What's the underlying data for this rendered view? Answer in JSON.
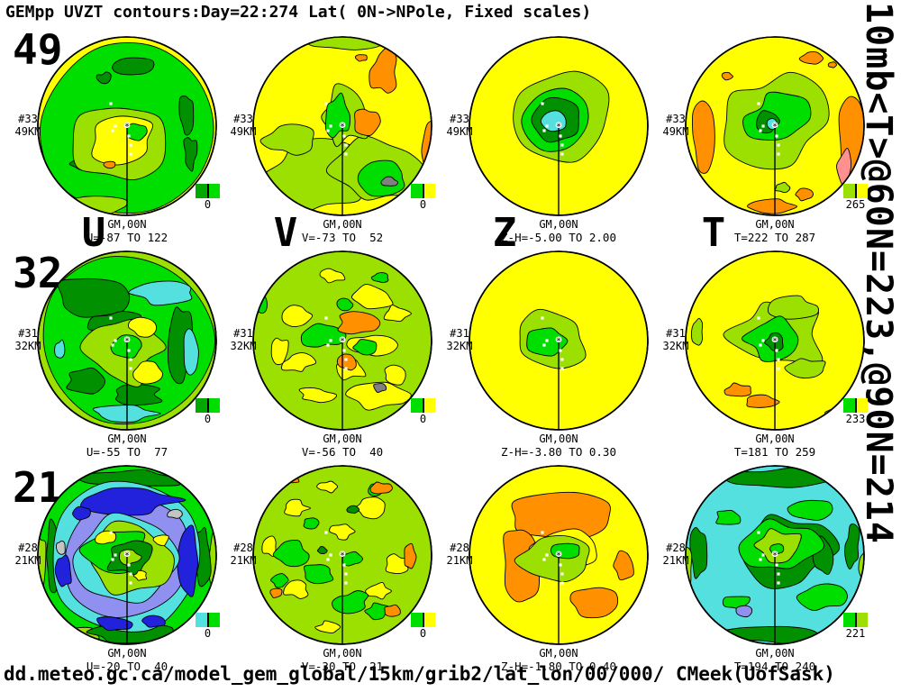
{
  "title": "GEMpp UVZT contours:Day=22:274 Lat( 0N->NPole, Fixed scales)",
  "right_annotation": "10mb<T>@60N=223,@90N=214",
  "footer": "dd.meteo.gc.ca/model_gem_global/15km/grib2/lat_lon/00/000/ CMeek(UofSask)",
  "column_labels": [
    "U",
    "V",
    "Z",
    "T"
  ],
  "rows": [
    {
      "row_label": "49",
      "field_index": "#33",
      "level": "49KM"
    },
    {
      "row_label": "32",
      "field_index": "#31",
      "level": "32KM"
    },
    {
      "row_label": "21",
      "field_index": "#28",
      "level": "21KM"
    }
  ],
  "panels": [
    {
      "id": "u49",
      "row": 0,
      "col": 0,
      "side1": "#33",
      "side2": "49KM",
      "caption1": "GM,00N",
      "caption2": "U=-87 TO 122",
      "legend": {
        "left": "#00A800",
        "right": "#00DE00",
        "value": "0"
      }
    },
    {
      "id": "v49",
      "row": 0,
      "col": 1,
      "side1": "#33",
      "side2": "49KM",
      "caption1": "GM,00N",
      "caption2": "V=-73 TO  52",
      "legend": {
        "left": "#00DE00",
        "right": "#FFFF00",
        "value": "0"
      }
    },
    {
      "id": "z49",
      "row": 0,
      "col": 2,
      "side1": "#33",
      "side2": "49KM",
      "caption1": "GM,00N",
      "caption2": "Z-H=-5.00 TO 2.00",
      "legend": null
    },
    {
      "id": "t49",
      "row": 0,
      "col": 3,
      "side1": "#33",
      "side2": "49KM",
      "caption1": "GM,00N",
      "caption2": "T=222 TO 287",
      "legend": {
        "left": "#9BE000",
        "right": "#FFFF00",
        "value": "265"
      }
    },
    {
      "id": "u32",
      "row": 1,
      "col": 0,
      "side1": "#31",
      "side2": "32KM",
      "caption1": "GM,00N",
      "caption2": "U=-55 TO  77",
      "legend": {
        "left": "#00A800",
        "right": "#00DE00",
        "value": "0"
      }
    },
    {
      "id": "v32",
      "row": 1,
      "col": 1,
      "side1": "#31",
      "side2": "32KM",
      "caption1": "GM,00N",
      "caption2": "V=-56 TO  40",
      "legend": {
        "left": "#00DE00",
        "right": "#FFFF00",
        "value": "0"
      }
    },
    {
      "id": "z32",
      "row": 1,
      "col": 2,
      "side1": "#31",
      "side2": "32KM",
      "caption1": "GM,00N",
      "caption2": "Z-H=-3.80 TO 0.30",
      "legend": null
    },
    {
      "id": "t32",
      "row": 1,
      "col": 3,
      "side1": "#31",
      "side2": "32KM",
      "caption1": "GM,00N",
      "caption2": "T=181 TO 259",
      "legend": {
        "left": "#00DE00",
        "right": "#FFFF00",
        "value": "233"
      }
    },
    {
      "id": "u21",
      "row": 2,
      "col": 0,
      "side1": "#28",
      "side2": "21KM",
      "caption1": "GM,00N",
      "caption2": "U=-20 TO  40",
      "legend": {
        "left": "#55E0E0",
        "right": "#00DE00",
        "value": "0"
      }
    },
    {
      "id": "v21",
      "row": 2,
      "col": 1,
      "side1": "#28",
      "side2": "21KM",
      "caption1": "GM,00N",
      "caption2": "V=-30 TO  21",
      "legend": {
        "left": "#00DE00",
        "right": "#FFFF00",
        "value": "0"
      }
    },
    {
      "id": "z21",
      "row": 2,
      "col": 2,
      "side1": "#28",
      "side2": "21KM",
      "caption1": "GM,00N",
      "caption2": "Z-H=-1.80 TO 0.40",
      "legend": null
    },
    {
      "id": "t21",
      "row": 2,
      "col": 3,
      "side1": "#28",
      "side2": "21KM",
      "caption1": "GM,00N",
      "caption2": "T=194 TO 240",
      "legend": {
        "left": "#00DE00",
        "right": "#9BE000",
        "value": "221"
      }
    }
  ],
  "palette": {
    "yellow": "#FFFF00",
    "chartreuse": "#9BE000",
    "green": "#00DE00",
    "midgreen": "#00A800",
    "dkgreen": "#009000",
    "cyan": "#55E0E0",
    "periwinkle": "#9090F0",
    "blue": "#2222DC",
    "orange": "#FF9100",
    "pink": "#FF9090",
    "gray": "#C4C4C4",
    "dkgray": "#808080",
    "background": "#FFFFFF",
    "ink": "#000000"
  },
  "chart_data": [
    {
      "type": "contour",
      "projection": "polar-stereographic",
      "variable": "U",
      "level": "49KM",
      "field_index": "#33",
      "grid": "GM,00N",
      "value_min": -87,
      "value_max": 122,
      "legend_contour": 0
    },
    {
      "type": "contour",
      "projection": "polar-stereographic",
      "variable": "V",
      "level": "49KM",
      "field_index": "#33",
      "grid": "GM,00N",
      "value_min": -73,
      "value_max": 52,
      "legend_contour": 0
    },
    {
      "type": "contour",
      "projection": "polar-stereographic",
      "variable": "Z-H",
      "level": "49KM",
      "field_index": "#33",
      "grid": "GM,00N",
      "value_min": -5.0,
      "value_max": 2.0,
      "legend_contour": null
    },
    {
      "type": "contour",
      "projection": "polar-stereographic",
      "variable": "T",
      "level": "49KM",
      "field_index": "#33",
      "grid": "GM,00N",
      "value_min": 222,
      "value_max": 287,
      "legend_contour": 265
    },
    {
      "type": "contour",
      "projection": "polar-stereographic",
      "variable": "U",
      "level": "32KM",
      "field_index": "#31",
      "grid": "GM,00N",
      "value_min": -55,
      "value_max": 77,
      "legend_contour": 0
    },
    {
      "type": "contour",
      "projection": "polar-stereographic",
      "variable": "V",
      "level": "32KM",
      "field_index": "#31",
      "grid": "GM,00N",
      "value_min": -56,
      "value_max": 40,
      "legend_contour": 0
    },
    {
      "type": "contour",
      "projection": "polar-stereographic",
      "variable": "Z-H",
      "level": "32KM",
      "field_index": "#31",
      "grid": "GM,00N",
      "value_min": -3.8,
      "value_max": 0.3,
      "legend_contour": null
    },
    {
      "type": "contour",
      "projection": "polar-stereographic",
      "variable": "T",
      "level": "32KM",
      "field_index": "#31",
      "grid": "GM,00N",
      "value_min": 181,
      "value_max": 259,
      "legend_contour": 233
    },
    {
      "type": "contour",
      "projection": "polar-stereographic",
      "variable": "U",
      "level": "21KM",
      "field_index": "#28",
      "grid": "GM,00N",
      "value_min": -20,
      "value_max": 40,
      "legend_contour": 0
    },
    {
      "type": "contour",
      "projection": "polar-stereographic",
      "variable": "V",
      "level": "21KM",
      "field_index": "#28",
      "grid": "GM,00N",
      "value_min": -30,
      "value_max": 21,
      "legend_contour": 0
    },
    {
      "type": "contour",
      "projection": "polar-stereographic",
      "variable": "Z-H",
      "level": "21KM",
      "field_index": "#28",
      "grid": "GM,00N",
      "value_min": -1.8,
      "value_max": 0.4,
      "legend_contour": null
    },
    {
      "type": "contour",
      "projection": "polar-stereographic",
      "variable": "T",
      "level": "21KM",
      "field_index": "#28",
      "grid": "GM,00N",
      "value_min": 194,
      "value_max": 240,
      "legend_contour": 221
    }
  ]
}
